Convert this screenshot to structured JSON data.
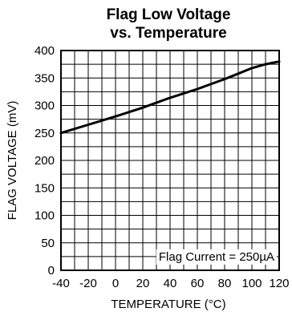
{
  "chart_data": {
    "type": "line",
    "title_line1": "Flag Low Voltage",
    "title_line2": "vs. Temperature",
    "xlabel": "TEMPERATURE (°C)",
    "ylabel": "FLAG VOLTAGE (mV)",
    "xlim": [
      -40,
      120
    ],
    "ylim": [
      0,
      400
    ],
    "x_ticks": [
      -40,
      -20,
      0,
      20,
      40,
      60,
      80,
      100,
      120
    ],
    "y_ticks": [
      0,
      50,
      100,
      150,
      200,
      250,
      300,
      350,
      400
    ],
    "x_tick_labels": [
      "-40",
      "-20",
      "0",
      "20",
      "40",
      "60",
      "80",
      "100",
      "120"
    ],
    "y_tick_labels": [
      "0",
      "50",
      "100",
      "150",
      "200",
      "250",
      "300",
      "350",
      "400"
    ],
    "grid": true,
    "annotation": "Flag Current = 250µA",
    "series": [
      {
        "x": [
          -40,
          -20,
          0,
          20,
          40,
          60,
          80,
          90,
          100,
          110,
          120
        ],
        "y": [
          250,
          265,
          280,
          296,
          314,
          330,
          348,
          358,
          368,
          375,
          380
        ]
      }
    ],
    "colors": {
      "line": "#000000",
      "grid": "#000000",
      "background": "#ffffff"
    }
  }
}
